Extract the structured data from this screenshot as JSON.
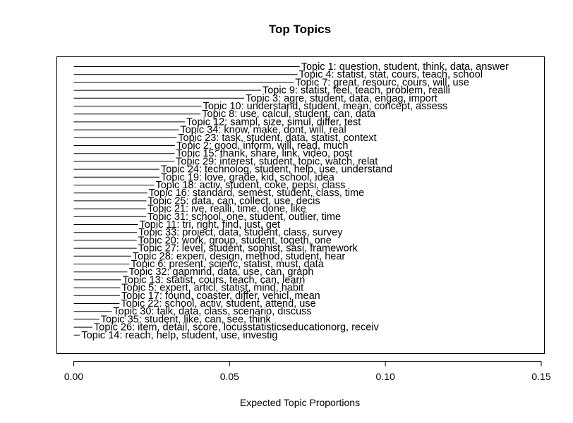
{
  "chart_data": {
    "type": "bar",
    "orientation": "horizontal",
    "title": "Top Topics",
    "xlabel": "Expected Topic Proportions",
    "ylabel": "",
    "xlim": [
      0.0,
      0.15
    ],
    "xticks": [
      "0.00",
      "0.05",
      "0.10",
      "0.15"
    ],
    "xtick_values": [
      0.0,
      0.05,
      0.1,
      0.15
    ],
    "grid": false,
    "legend": "none",
    "bar_color": "#000000",
    "topics": [
      {
        "label": "Topic 1: question, student, think, data, answer",
        "value": 0.0725
      },
      {
        "label": "Topic 4: statist, stat, cours, teach, school",
        "value": 0.0718
      },
      {
        "label": "Topic 7: great, resourc, cours, will, use",
        "value": 0.0706
      },
      {
        "label": "Topic 9: statist, feel, teach, problem, realli",
        "value": 0.0601
      },
      {
        "label": "Topic 3: agre, student, data, engag, import",
        "value": 0.0547
      },
      {
        "label": "Topic 10: understand, student, mean, concept, assess",
        "value": 0.041
      },
      {
        "label": "Topic 8: use, calcul, student, can, data",
        "value": 0.0407
      },
      {
        "label": "Topic 12: sampl, size, simul, differ, test",
        "value": 0.0357
      },
      {
        "label": "Topic 34: know, make, dont, will, real",
        "value": 0.0337
      },
      {
        "label": "Topic 23: task, student, data, statist, context",
        "value": 0.033
      },
      {
        "label": "Topic 2: good, inform, will, read, much",
        "value": 0.0325
      },
      {
        "label": "Topic 15: thank, share, link, video, post",
        "value": 0.0324
      },
      {
        "label": "Topic 29: interest, student, topic, watch, relat",
        "value": 0.0323
      },
      {
        "label": "Topic 24: technolog, student, help, use, understand",
        "value": 0.0275
      },
      {
        "label": "Topic 19: love, grade, kid, school, idea",
        "value": 0.0275
      },
      {
        "label": "Topic 18: activ, student, coke, pepsi, class",
        "value": 0.0258
      },
      {
        "label": "Topic 16: standard, semest, student, class, time",
        "value": 0.0236
      },
      {
        "label": "Topic 25: data, can, collect, use, decis",
        "value": 0.0233
      },
      {
        "label": "Topic 21: ive, realli, time, done, like",
        "value": 0.0232
      },
      {
        "label": "Topic 31: school, one, student, outlier, time",
        "value": 0.0232
      },
      {
        "label": "Topic 11: tri, right, find, just, get",
        "value": 0.0206
      },
      {
        "label": "Topic 33: project, data, student, class, survey",
        "value": 0.0203
      },
      {
        "label": "Topic 20: work, group, student, togeth, one",
        "value": 0.0202
      },
      {
        "label": "Topic 27: level, student, sophist, sasi, framework",
        "value": 0.0202
      },
      {
        "label": "Topic 28: experi, design, method, student, hear",
        "value": 0.0184
      },
      {
        "label": "Topic 6: present, scienc, statist, must, data",
        "value": 0.0179
      },
      {
        "label": "Topic 32: gapmind, data, use, can, graph",
        "value": 0.0172
      },
      {
        "label": "Topic 13: statist, cours, teach, can, learn",
        "value": 0.0152
      },
      {
        "label": "Topic 5: expert, articl, statist, mind, habit",
        "value": 0.0149
      },
      {
        "label": "Topic 17: found, coaster, differ, vehicl, mean",
        "value": 0.0148
      },
      {
        "label": "Topic 22: school, activ, student, attend, use",
        "value": 0.0147
      },
      {
        "label": "Topic 30: talk, data, class, scenario, discuss",
        "value": 0.0122
      },
      {
        "label": "Topic 35: student, like, can, see, think",
        "value": 0.0082
      },
      {
        "label": "Topic 26: item, detail, score, locusstatisticseducationorg, receiv",
        "value": 0.006
      },
      {
        "label": "Topic 14: reach, help, student, use, investig",
        "value": 0.002
      }
    ]
  }
}
